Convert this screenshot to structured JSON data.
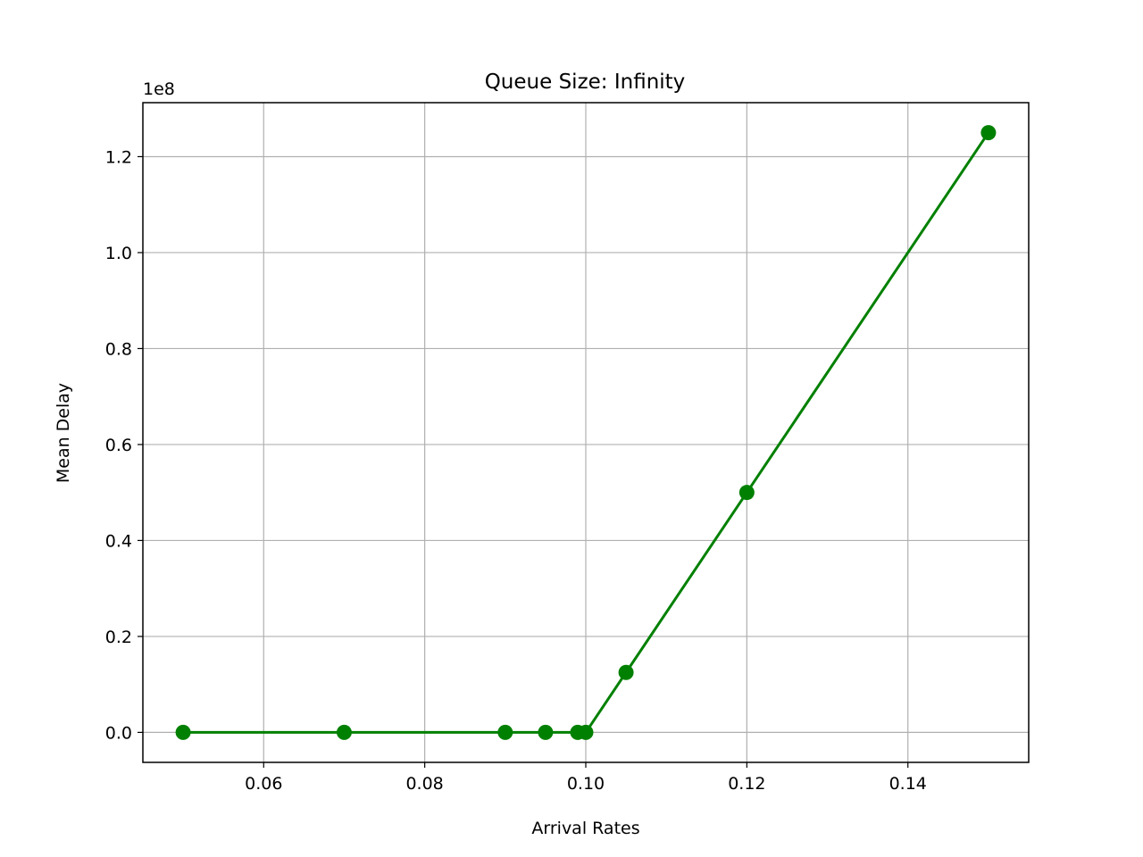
{
  "chart_data": {
    "type": "line",
    "title": "Queue Size: Infinity",
    "xlabel": "Arrival Rates",
    "ylabel": "Mean Delay",
    "y_offset_label": "1e8",
    "y_scale_factor": 100000000,
    "xlim": [
      0.045,
      0.155
    ],
    "ylim": [
      -0.0625,
      1.3125
    ],
    "x_ticks": [
      0.06,
      0.08,
      0.1,
      0.12,
      0.14
    ],
    "x_tick_labels": [
      "0.06",
      "0.08",
      "0.10",
      "0.12",
      "0.14"
    ],
    "y_ticks": [
      0.0,
      0.2,
      0.4,
      0.6,
      0.8,
      1.0,
      1.2
    ],
    "y_tick_labels": [
      "0.0",
      "0.2",
      "0.4",
      "0.6",
      "0.8",
      "1.0",
      "1.2"
    ],
    "grid": true,
    "series": [
      {
        "color": "#008000",
        "marker": "circle",
        "x": [
          0.05,
          0.07,
          0.09,
          0.095,
          0.099,
          0.1,
          0.105,
          0.12,
          0.15
        ],
        "y": [
          0.0,
          0.0,
          0.0,
          0.0,
          0.0,
          0.0,
          0.125,
          0.5,
          1.25
        ]
      }
    ]
  }
}
